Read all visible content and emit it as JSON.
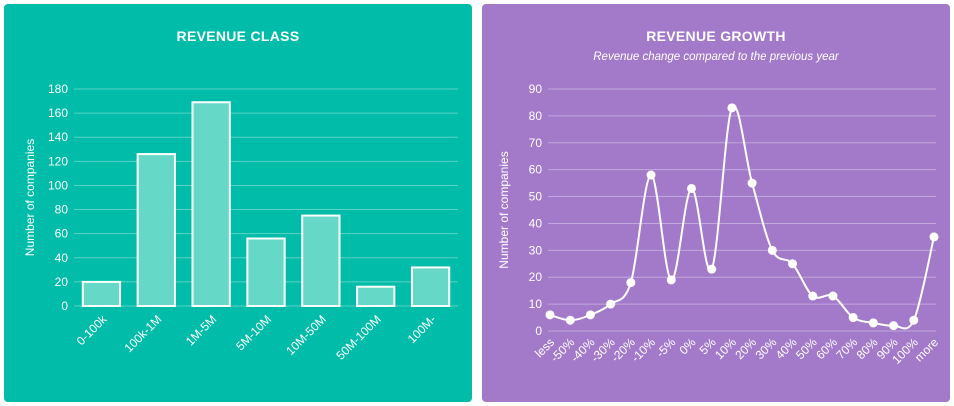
{
  "chart_data": [
    {
      "type": "bar",
      "title": "REVENUE CLASS",
      "ylabel": "Number of companies",
      "xlabel": "",
      "categories": [
        "0-100k",
        "100k-1M",
        "1M-5M",
        "5M-10M",
        "10M-50M",
        "50M-100M",
        "100M-"
      ],
      "values": [
        20,
        126,
        169,
        56,
        75,
        16,
        32
      ],
      "ylim": [
        0,
        180
      ],
      "yticks": [
        0,
        20,
        40,
        60,
        80,
        100,
        120,
        140,
        160,
        180
      ],
      "grid": true,
      "colors": {
        "background": "#00bca8",
        "bar_fill": "#66d8c8",
        "bar_stroke": "#ffffff"
      }
    },
    {
      "type": "line",
      "title": "REVENUE GROWTH",
      "subtitle": "Revenue change compared to the previous year",
      "ylabel": "Number of companies",
      "xlabel": "",
      "categories": [
        "less",
        "-50%",
        "-40%",
        "-30%",
        "-20%",
        "-10%",
        "-5%",
        "0%",
        "5%",
        "10%",
        "20%",
        "30%",
        "40%",
        "50%",
        "60%",
        "70%",
        "80%",
        "90%",
        "100%",
        "more"
      ],
      "values": [
        6,
        4,
        6,
        10,
        18,
        58,
        19,
        53,
        23,
        83,
        55,
        30,
        25,
        13,
        13,
        5,
        3,
        2,
        4,
        35
      ],
      "ylim": [
        0,
        90
      ],
      "yticks": [
        0,
        10,
        20,
        30,
        40,
        50,
        60,
        70,
        80,
        90
      ],
      "grid": true,
      "colors": {
        "background": "#a27ac9",
        "line": "#ffffff",
        "marker": "#ffffff"
      }
    }
  ]
}
